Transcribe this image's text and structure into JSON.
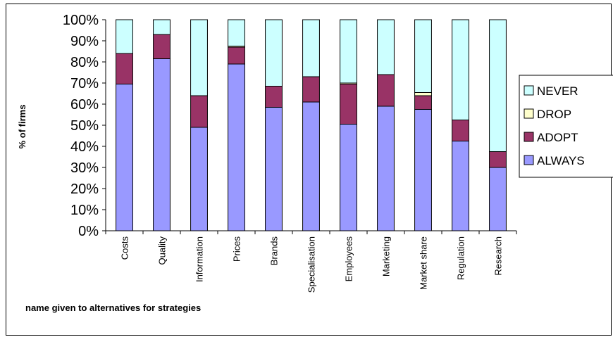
{
  "chart_data": {
    "type": "bar",
    "stacked": true,
    "percent": true,
    "title": "",
    "xlabel": "name given to alternatives for strategies",
    "ylabel": "% of firms",
    "ylim": [
      0,
      100
    ],
    "yticks": [
      "0%",
      "10%",
      "20%",
      "30%",
      "40%",
      "50%",
      "60%",
      "70%",
      "80%",
      "90%",
      "100%"
    ],
    "categories": [
      "Costs",
      "Quality",
      "Information",
      "Prices",
      "Brands",
      "Specialisation",
      "Employees",
      "Marketing",
      "Market share",
      "Regulation",
      "Research"
    ],
    "series": [
      {
        "name": "ALWAYS",
        "color": "#9999ff",
        "values": [
          69.5,
          81.5,
          49,
          79,
          58.5,
          61,
          50.5,
          59,
          57.5,
          42.5,
          30
        ]
      },
      {
        "name": "ADOPT",
        "color": "#993366",
        "values": [
          14.5,
          11.5,
          15,
          8,
          10,
          12,
          19,
          15,
          6.5,
          10,
          7.5
        ]
      },
      {
        "name": "DROP",
        "color": "#ffffcc",
        "values": [
          0,
          0,
          0,
          0.5,
          0,
          0,
          0.5,
          0,
          1.5,
          0,
          0
        ]
      },
      {
        "name": "NEVER",
        "color": "#ccffff",
        "values": [
          16,
          7,
          36,
          12.5,
          31.5,
          27,
          30,
          26,
          34.5,
          47.5,
          62.5
        ]
      }
    ],
    "legend": {
      "position": "right",
      "order": [
        "NEVER",
        "DROP",
        "ADOPT",
        "ALWAYS"
      ]
    },
    "grid": false
  }
}
